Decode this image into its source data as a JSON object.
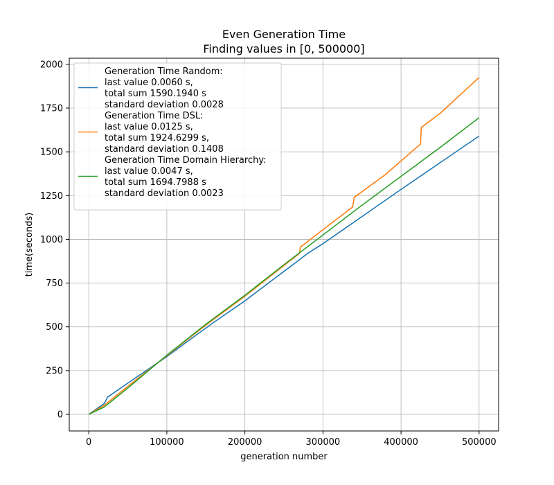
{
  "chart_data": {
    "type": "line",
    "title_line1": "Even Generation Time",
    "title_line2": "Finding values in [0, 500000]",
    "xlabel": "generation number",
    "ylabel": "time(seconds)",
    "xlim": [
      -25000,
      525000
    ],
    "ylim": [
      -95,
      2035
    ],
    "xticks": [
      0,
      100000,
      200000,
      300000,
      400000,
      500000
    ],
    "xtick_labels": [
      "0",
      "100000",
      "200000",
      "300000",
      "400000",
      "500000"
    ],
    "yticks": [
      0,
      250,
      500,
      750,
      1000,
      1250,
      1500,
      1750,
      2000
    ],
    "ytick_labels": [
      "0",
      "250",
      "500",
      "750",
      "1000",
      "1250",
      "1500",
      "1750",
      "2000"
    ],
    "grid": true,
    "legend_position": "top-left",
    "series": [
      {
        "color": "#1f77b4",
        "legend_lines": [
          "Generation Time Random:",
          "last value 0.0060 s,",
          "total sum 1590.1940 s",
          "standard deviation 0.0028"
        ],
        "points": [
          [
            0,
            0
          ],
          [
            20000,
            62
          ],
          [
            22000,
            80
          ],
          [
            24000,
            98
          ],
          [
            50000,
            178
          ],
          [
            100000,
            330
          ],
          [
            130000,
            428
          ],
          [
            160000,
            525
          ],
          [
            200000,
            648
          ],
          [
            230000,
            750
          ],
          [
            260000,
            850
          ],
          [
            280000,
            918
          ],
          [
            300000,
            975
          ],
          [
            400000,
            1285
          ],
          [
            500000,
            1590
          ]
        ]
      },
      {
        "color": "#ff7f0e",
        "legend_lines": [
          "Generation Time DSL:",
          "last value 0.0125 s,",
          "total sum 1924.6299 s,",
          "standard deviation 0.1408"
        ],
        "points": [
          [
            0,
            0
          ],
          [
            20000,
            52
          ],
          [
            50000,
            160
          ],
          [
            100000,
            335
          ],
          [
            150000,
            510
          ],
          [
            200000,
            675
          ],
          [
            250000,
            850
          ],
          [
            270000,
            920
          ],
          [
            271000,
            955
          ],
          [
            300000,
            1055
          ],
          [
            338000,
            1185
          ],
          [
            339000,
            1210
          ],
          [
            340000,
            1240
          ],
          [
            380000,
            1370
          ],
          [
            425000,
            1545
          ],
          [
            426000,
            1640
          ],
          [
            450000,
            1720
          ],
          [
            500000,
            1925
          ]
        ]
      },
      {
        "color": "#2ca02c",
        "legend_lines": [
          "Generation Time Domain Hierarchy:",
          "last value 0.0047 s,",
          "total sum 1694.7988 s",
          "standard deviation 0.0023"
        ],
        "points": [
          [
            0,
            0
          ],
          [
            20000,
            42
          ],
          [
            50000,
            150
          ],
          [
            100000,
            338
          ],
          [
            150000,
            515
          ],
          [
            200000,
            680
          ],
          [
            250000,
            855
          ],
          [
            300000,
            1025
          ],
          [
            350000,
            1195
          ],
          [
            400000,
            1360
          ],
          [
            450000,
            1525
          ],
          [
            500000,
            1695
          ]
        ]
      }
    ]
  }
}
